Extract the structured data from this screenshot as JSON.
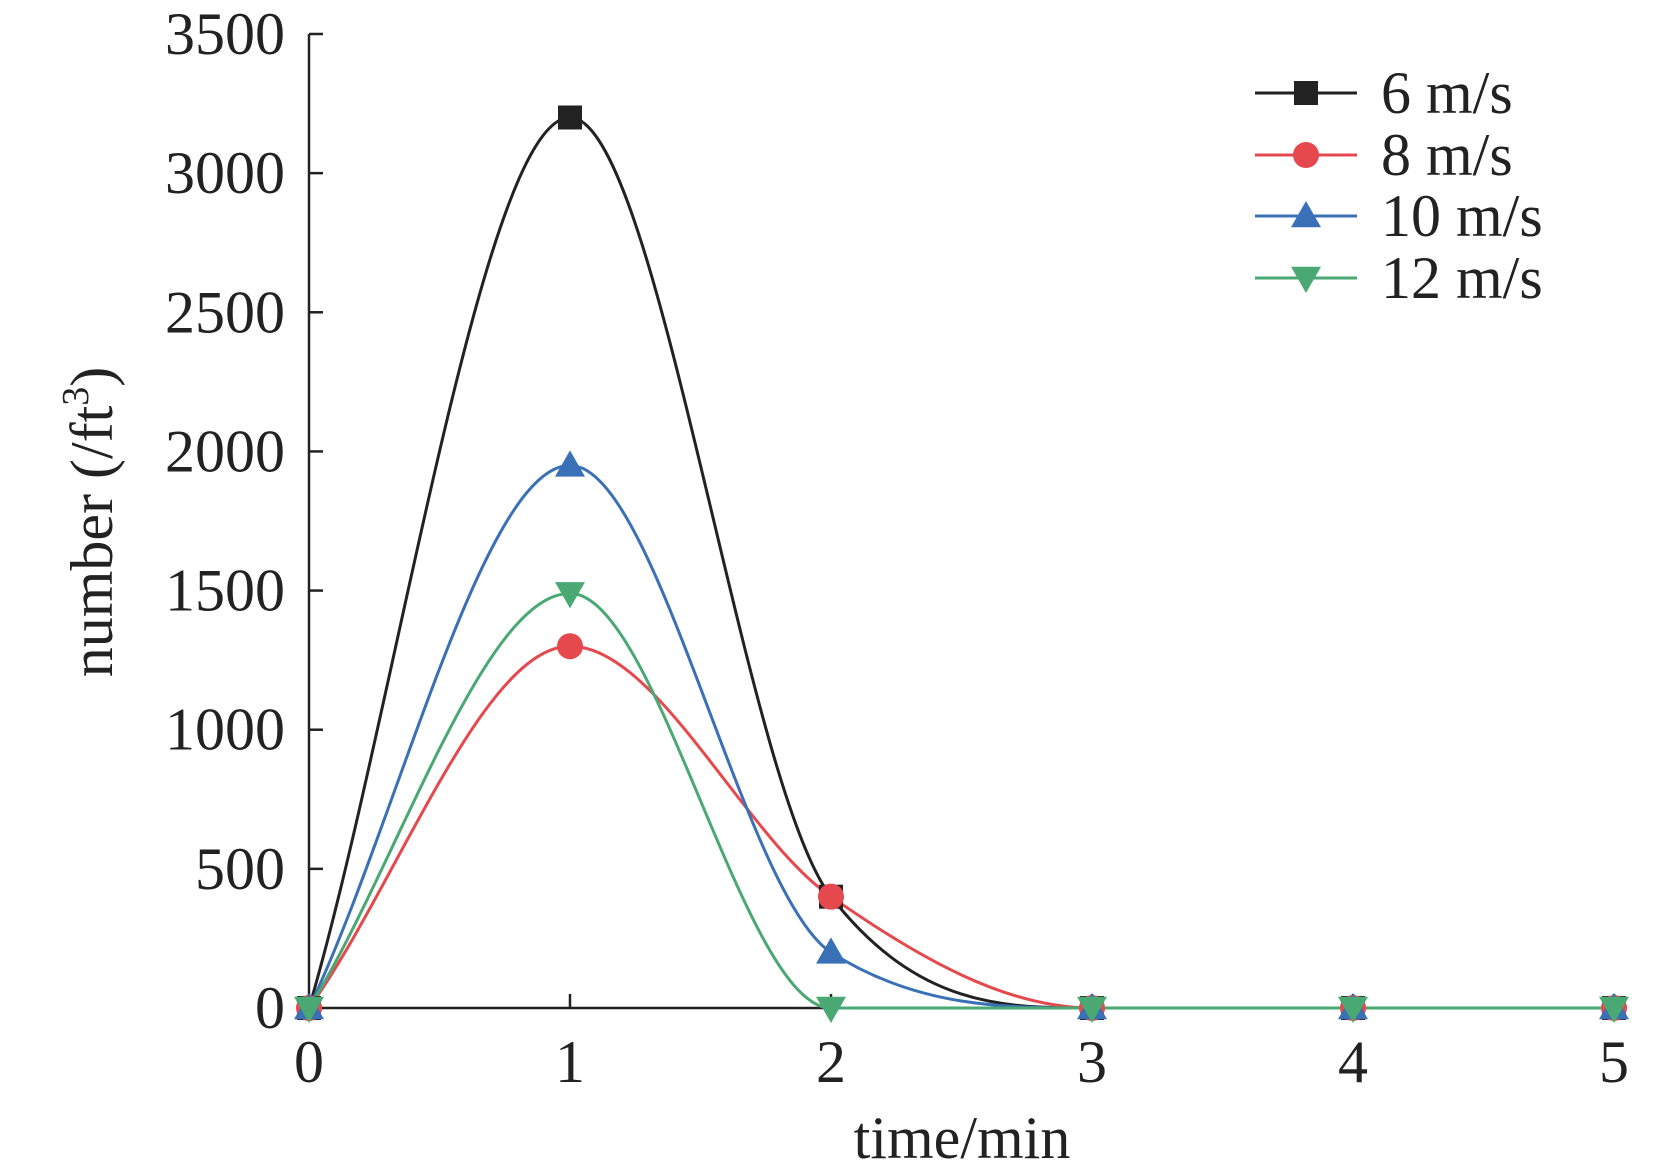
{
  "chart_data": {
    "type": "line",
    "xlabel": "time/min",
    "ylabel": "number (/ft",
    "ylabel_superscript": "3",
    "ylabel_suffix": ")",
    "xlim": [
      0,
      5
    ],
    "ylim": [
      0,
      3500
    ],
    "x_ticks": [
      0,
      1,
      2,
      3,
      4,
      5
    ],
    "y_ticks": [
      0,
      500,
      1000,
      1500,
      2000,
      2500,
      3000,
      3500
    ],
    "legend_position": "top-right",
    "grid": false,
    "x": [
      0,
      1,
      2,
      3,
      4,
      5
    ],
    "series": [
      {
        "name": "6 m/s",
        "color": "#222222",
        "marker": "square",
        "values": [
          0,
          3200,
          400,
          0,
          0,
          0
        ]
      },
      {
        "name": "8 m/s",
        "color": "#e5484d",
        "marker": "circle",
        "values": [
          0,
          1300,
          400,
          0,
          0,
          0
        ]
      },
      {
        "name": "10 m/s",
        "color": "#3a70b5",
        "marker": "triangle-up",
        "values": [
          0,
          1950,
          200,
          0,
          0,
          0
        ]
      },
      {
        "name": "12 m/s",
        "color": "#4aa872",
        "marker": "triangle-down",
        "values": [
          0,
          1490,
          0,
          0,
          0,
          0
        ]
      }
    ]
  }
}
